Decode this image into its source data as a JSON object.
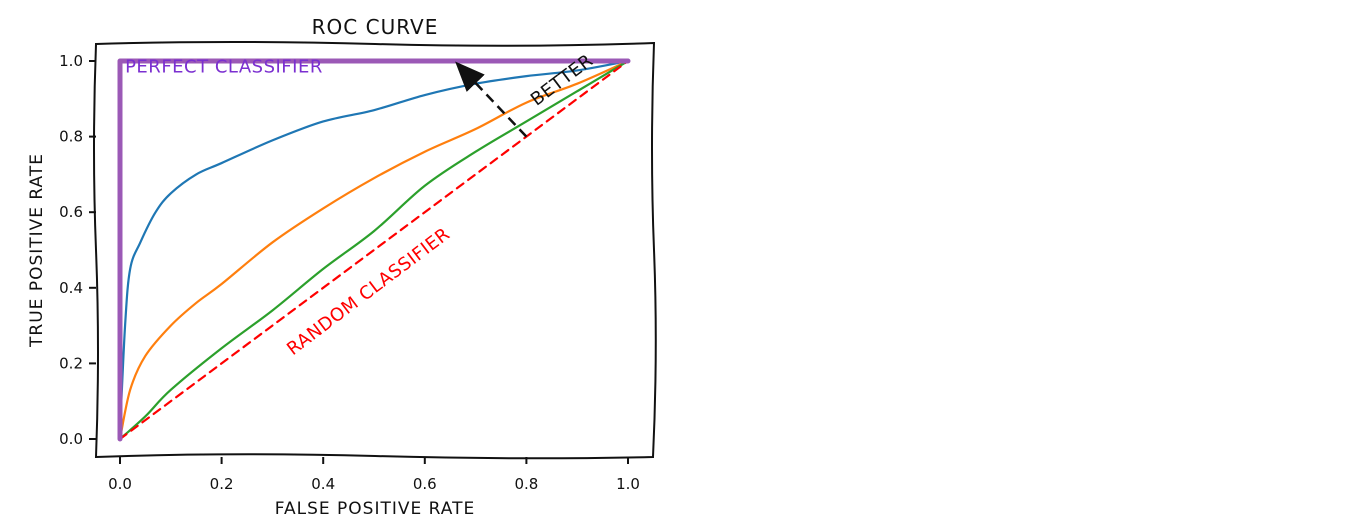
{
  "chart_data": {
    "type": "line",
    "title": "ROC CURVE",
    "xlabel": "FALSE POSITIVE RATE",
    "ylabel": "TRUE POSITIVE RATE",
    "xlim": [
      -0.05,
      1.05
    ],
    "ylim": [
      -0.05,
      1.05
    ],
    "x_ticks": [
      0.0,
      0.2,
      0.4,
      0.6,
      0.8,
      1.0
    ],
    "x_tick_labels": [
      "0.0",
      "0.2",
      "0.4",
      "0.6",
      "0.8",
      "1.0"
    ],
    "y_ticks": [
      0.0,
      0.2,
      0.4,
      0.6,
      0.8,
      1.0
    ],
    "y_tick_labels": [
      "0.0",
      "0.2",
      "0.4",
      "0.6",
      "0.8",
      "1.0"
    ],
    "grid": false,
    "legend": "none",
    "series": [
      {
        "color": "#1f77b4",
        "x": [
          0.0,
          0.01,
          0.02,
          0.04,
          0.07,
          0.1,
          0.15,
          0.2,
          0.3,
          0.4,
          0.5,
          0.6,
          0.7,
          0.8,
          0.9,
          1.0
        ],
        "y": [
          0.02,
          0.3,
          0.45,
          0.52,
          0.6,
          0.65,
          0.7,
          0.73,
          0.79,
          0.84,
          0.87,
          0.91,
          0.94,
          0.96,
          0.975,
          1.0
        ]
      },
      {
        "color": "#ff7f0e",
        "x": [
          0.0,
          0.02,
          0.05,
          0.1,
          0.15,
          0.2,
          0.3,
          0.4,
          0.5,
          0.6,
          0.7,
          0.8,
          0.9,
          1.0
        ],
        "y": [
          0.0,
          0.13,
          0.22,
          0.3,
          0.36,
          0.41,
          0.52,
          0.61,
          0.69,
          0.76,
          0.82,
          0.89,
          0.94,
          1.0
        ]
      },
      {
        "color": "#2ca02c",
        "x": [
          0.0,
          0.05,
          0.1,
          0.2,
          0.3,
          0.4,
          0.5,
          0.6,
          0.7,
          0.8,
          0.9,
          1.0
        ],
        "y": [
          0.0,
          0.06,
          0.13,
          0.24,
          0.34,
          0.45,
          0.55,
          0.67,
          0.76,
          0.84,
          0.92,
          1.0
        ]
      },
      {
        "name": "RANDOM CLASSIFIER",
        "color": "#ff0000",
        "dashed": true,
        "x": [
          0.0,
          1.0
        ],
        "y": [
          0.0,
          1.0
        ]
      },
      {
        "name": "PERFECT CLASSIFIER",
        "color": "#9b59b6",
        "x": [
          0.0,
          0.0,
          1.0
        ],
        "y": [
          0.0,
          1.0,
          1.0
        ]
      }
    ],
    "annotations": [
      {
        "text": "PERFECT CLASSIFIER",
        "color": "#7b2fd0",
        "x": 0.01,
        "y": 0.97
      },
      {
        "text": "RANDOM CLASSIFIER",
        "color": "#ff0000",
        "x": 0.34,
        "y": 0.22
      },
      {
        "text": "BETTER",
        "color": "#111111",
        "x": 0.82,
        "y": 0.88,
        "arrow_from": [
          0.8,
          0.8
        ],
        "arrow_to": [
          0.68,
          0.97
        ]
      }
    ]
  }
}
